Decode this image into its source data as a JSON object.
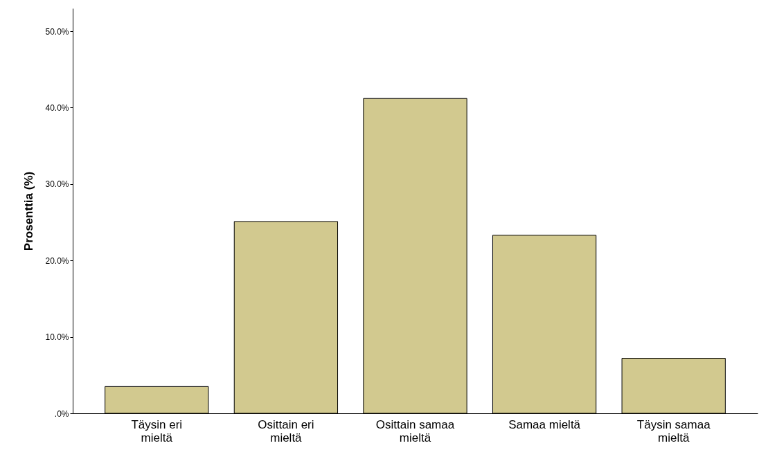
{
  "chart_data": {
    "type": "bar",
    "ylabel": "Prosenttia (%)",
    "categories": [
      "Täysin eri mieltä",
      "Osittain eri mieltä",
      "Osittain samaa mieltä",
      "Samaa mieltä",
      "Täysin samaa mieltä"
    ],
    "values": [
      3.5,
      25.1,
      41.2,
      23.3,
      7.2
    ],
    "color": "#d2c98f",
    "ylim": [
      0,
      53
    ],
    "yticks": [
      {
        "value": 0,
        "label": ".0%"
      },
      {
        "value": 10,
        "label": "10.0%"
      },
      {
        "value": 20,
        "label": "20.0%"
      },
      {
        "value": 30,
        "label": "30.0%"
      },
      {
        "value": 40,
        "label": "40.0%"
      },
      {
        "value": 50,
        "label": "50.0%"
      }
    ],
    "grid": false
  }
}
